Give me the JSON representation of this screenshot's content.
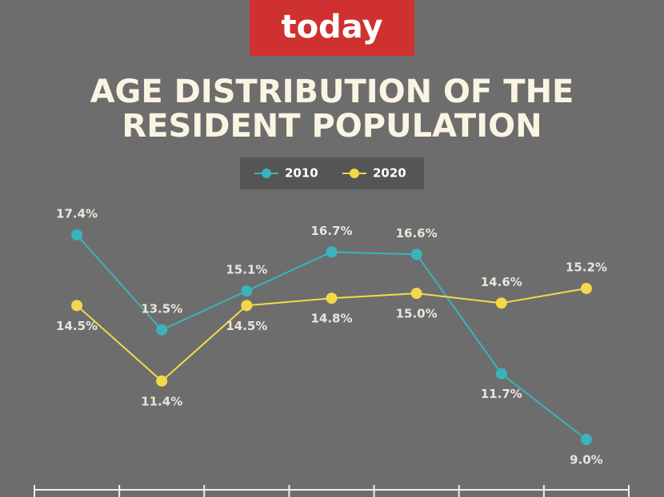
{
  "header": {
    "brand": "today"
  },
  "chart_data": {
    "type": "line",
    "title_lines": [
      "AGE DISTRIBUTION OF THE",
      "RESIDENT POPULATION"
    ],
    "categories": [
      null,
      null,
      null,
      null,
      null,
      null,
      null
    ],
    "series": [
      {
        "name": "2010",
        "color": "#3bb3bc",
        "values": [
          17.4,
          13.5,
          15.1,
          16.7,
          16.6,
          11.7,
          9.0
        ],
        "value_labels": [
          "17.4%",
          "13.5%",
          "15.1%",
          "16.7%",
          "16.6%",
          "11.7%",
          "9.0%"
        ]
      },
      {
        "name": "2020",
        "color": "#f3d94a",
        "values": [
          14.5,
          11.4,
          14.5,
          14.8,
          15.0,
          14.6,
          15.2
        ],
        "value_labels": [
          "14.5%",
          "11.4%",
          "14.5%",
          "14.8%",
          "15.0%",
          "14.6%",
          "15.2%"
        ]
      }
    ],
    "legend": "top"
  }
}
